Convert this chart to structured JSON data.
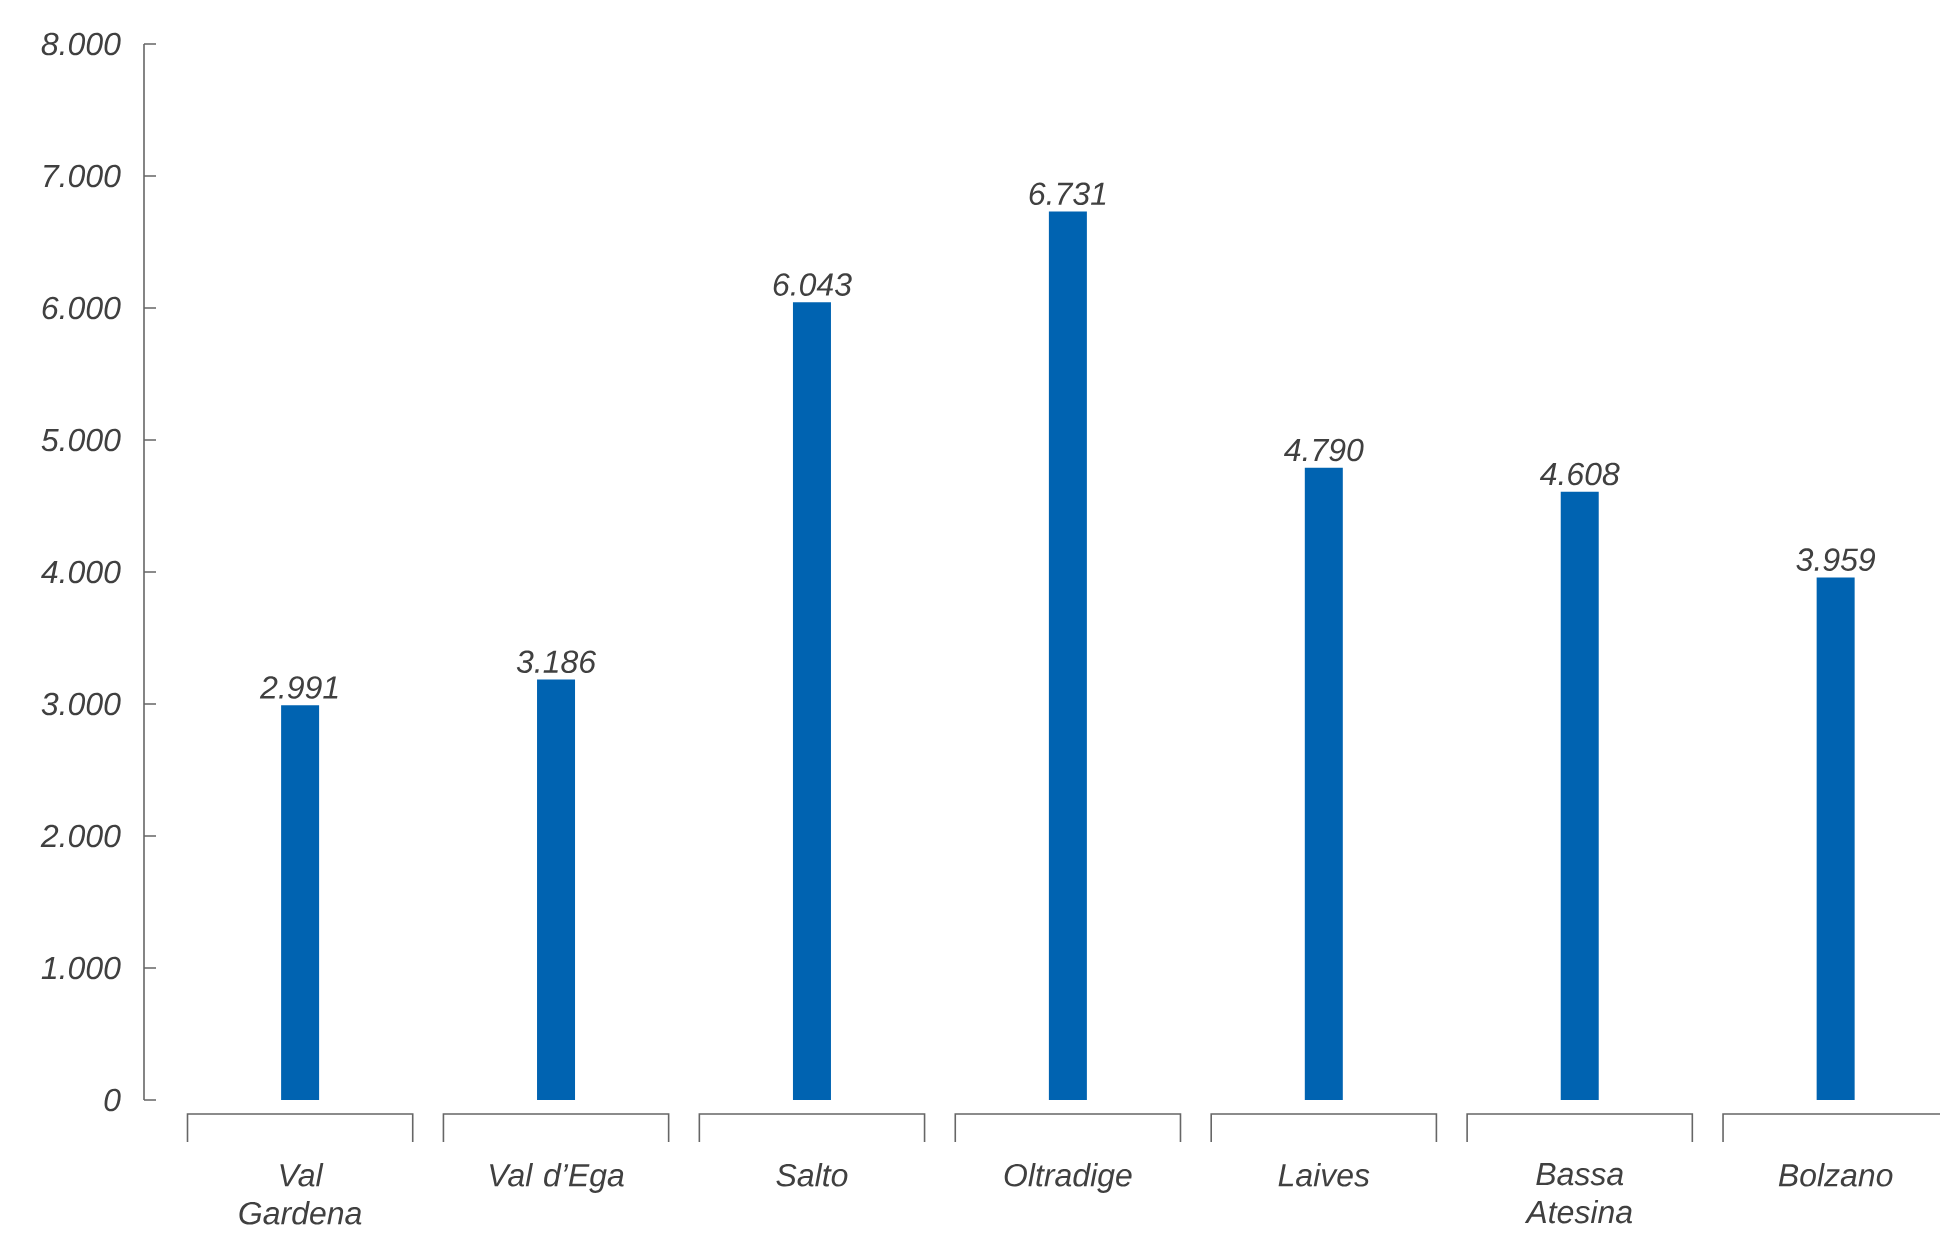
{
  "chart_data": {
    "type": "bar",
    "categories": [
      "Val Gardena",
      "Val d’Ega",
      "Salto",
      "Oltradige",
      "Laives",
      "Bassa Atesina",
      "Bolzano"
    ],
    "values": [
      2991,
      3186,
      6043,
      6731,
      4790,
      4608,
      3959
    ],
    "value_labels": [
      "2.991",
      "3.186",
      "6.043",
      "6.731",
      "4.790",
      "4.608",
      "3.959"
    ],
    "color": "#0063b1",
    "ylim": [
      0,
      8000
    ],
    "yticks": [
      {
        "value": 0,
        "label": "0"
      },
      {
        "value": 1000,
        "label": "1.000"
      },
      {
        "value": 2000,
        "label": "2.000"
      },
      {
        "value": 3000,
        "label": "3.000"
      },
      {
        "value": 4000,
        "label": "4.000"
      },
      {
        "value": 5000,
        "label": "5.000"
      },
      {
        "value": 6000,
        "label": "6.000"
      },
      {
        "value": 7000,
        "label": "7.000"
      },
      {
        "value": 8000,
        "label": "8.000"
      }
    ],
    "grid": false
  }
}
